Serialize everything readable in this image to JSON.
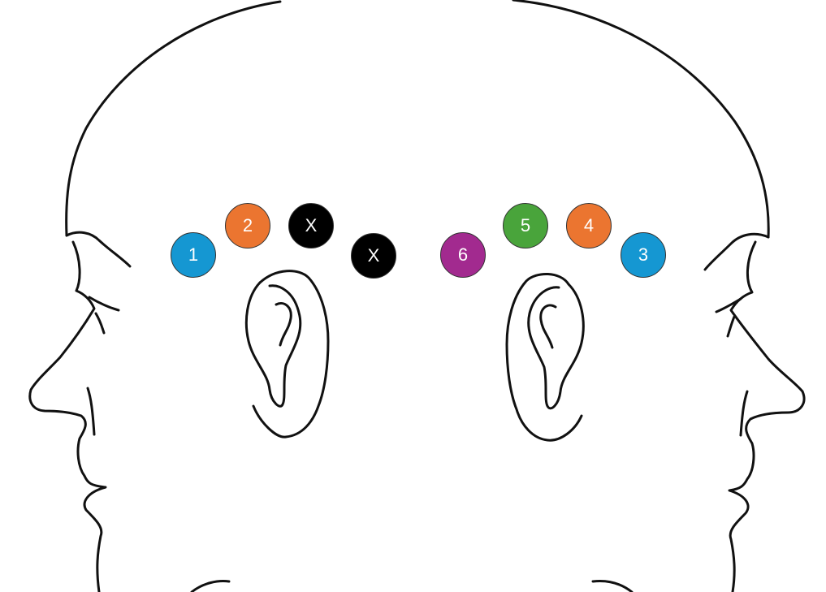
{
  "markers": {
    "m1": {
      "label": "1",
      "color": "#1597d2"
    },
    "m2": {
      "label": "2",
      "color": "#eb7530"
    },
    "x1": {
      "label": "X",
      "color": "#000000"
    },
    "x2": {
      "label": "X",
      "color": "#000000"
    },
    "m6": {
      "label": "6",
      "color": "#a22a8f"
    },
    "m5": {
      "label": "5",
      "color": "#49a43b"
    },
    "m4": {
      "label": "4",
      "color": "#eb7530"
    },
    "m3": {
      "label": "3",
      "color": "#1597d2"
    }
  },
  "heads": [
    "left-profile-head",
    "right-profile-head"
  ],
  "line_color": "#111111"
}
